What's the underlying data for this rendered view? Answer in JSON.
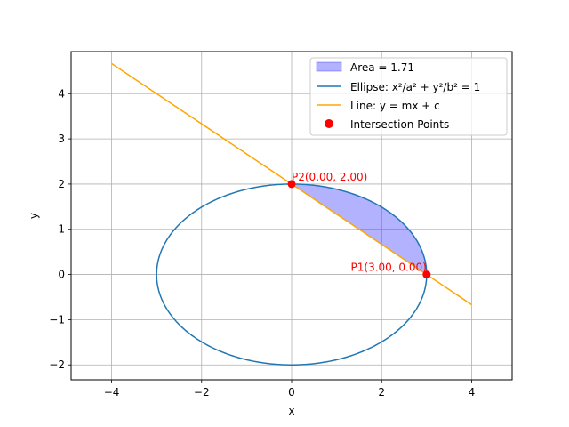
{
  "chart_data": {
    "type": "line",
    "xlabel": "x",
    "ylabel": "y",
    "xlim": [
      -4.9,
      4.9
    ],
    "ylim": [
      -2.33,
      4.93
    ],
    "grid": true,
    "legend_position": "top-right",
    "xticks": [
      -4,
      -2,
      0,
      2,
      4
    ],
    "yticks": [
      -2,
      -1,
      0,
      1,
      2,
      3,
      4
    ],
    "xtick_labels": [
      "−4",
      "−2",
      "0",
      "2",
      "4"
    ],
    "ytick_labels": [
      "−2",
      "−1",
      "0",
      "1",
      "2",
      "3",
      "4"
    ],
    "ellipse": {
      "a": 3,
      "b": 2,
      "label": "Ellipse: x²/a² + y²/b² = 1",
      "color": "#1f77b4"
    },
    "line": {
      "m": -0.6667,
      "c": 2,
      "x_range": [
        -4,
        4
      ],
      "label": "Line: y = mx + c",
      "color": "#ffa500"
    },
    "area": {
      "value": 1.71,
      "label": "Area = 1.71",
      "color": "#0000ff"
    },
    "intersections": {
      "label": "Intersection Points",
      "color": "#ff0000",
      "points": [
        {
          "x": 3,
          "y": 0,
          "label": "P1(3.00, 0.00)"
        },
        {
          "x": 0,
          "y": 2,
          "label": "P2(0.00, 2.00)"
        }
      ]
    }
  }
}
